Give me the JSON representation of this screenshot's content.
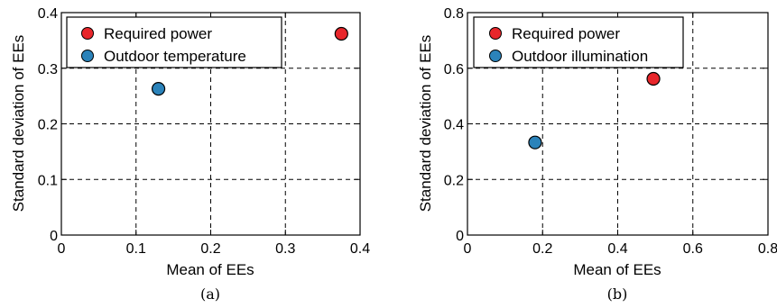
{
  "chart_data": [
    {
      "type": "scatter",
      "xlabel": "Mean of EEs",
      "ylabel": "Standard deviation of EEs",
      "xlim": [
        0,
        0.4
      ],
      "ylim": [
        0,
        0.4
      ],
      "xticks": [
        "0",
        "0.1",
        "0.2",
        "0.3",
        "0.4"
      ],
      "yticks": [
        "0",
        "0.1",
        "0.2",
        "0.3",
        "0.4"
      ],
      "grid": true,
      "legend_position": "top",
      "caption": "(a)",
      "series": [
        {
          "name": "Required power",
          "color": "#e8262b",
          "x": [
            0.375
          ],
          "y": [
            0.362
          ]
        },
        {
          "name": "Outdoor temperature",
          "color": "#2b83ba",
          "x": [
            0.13
          ],
          "y": [
            0.263
          ]
        }
      ]
    },
    {
      "type": "scatter",
      "xlabel": "Mean of EEs",
      "ylabel": "Standard deviation of EEs",
      "xlim": [
        0,
        0.8
      ],
      "ylim": [
        0,
        0.8
      ],
      "xticks": [
        "0",
        "0.2",
        "0.4",
        "0.6",
        "0.8"
      ],
      "yticks": [
        "0",
        "0.2",
        "0.4",
        "0.6",
        "0.8"
      ],
      "grid": true,
      "legend_position": "top",
      "caption": "(b)",
      "series": [
        {
          "name": "Required power",
          "color": "#e8262b",
          "x": [
            0.495
          ],
          "y": [
            0.562
          ]
        },
        {
          "name": "Outdoor illumination",
          "color": "#2b83ba",
          "x": [
            0.18
          ],
          "y": [
            0.333
          ]
        }
      ]
    }
  ]
}
